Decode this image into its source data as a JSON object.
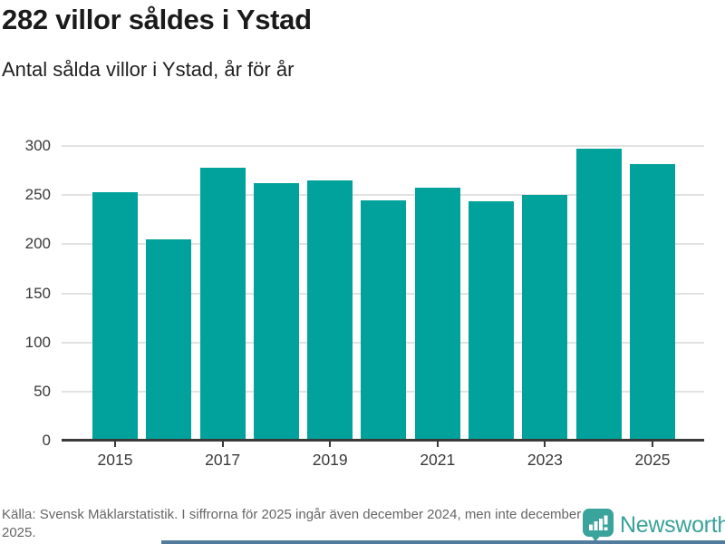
{
  "header": {
    "title": "282 villor såldes i Ystad",
    "subtitle": "Antal sålda villor i Ystad, år för år"
  },
  "chart_data": {
    "type": "bar",
    "categories": [
      "2015",
      "2016",
      "2017",
      "2018",
      "2019",
      "2020",
      "2021",
      "2022",
      "2023",
      "2024",
      "2025"
    ],
    "values": [
      253,
      205,
      278,
      262,
      265,
      245,
      258,
      244,
      250,
      297,
      282
    ],
    "x_tick_labels": [
      "2015",
      "",
      "2017",
      "",
      "2019",
      "",
      "2021",
      "",
      "2023",
      "",
      "2025"
    ],
    "y_ticks": [
      0,
      50,
      100,
      150,
      200,
      250,
      300
    ],
    "ylim": [
      0,
      300
    ],
    "title": "282 villor såldes i Ystad",
    "xlabel": "",
    "ylabel": "",
    "grid": "horizontal",
    "legend": "none",
    "bar_color": "#00a29b"
  },
  "footer": {
    "source": "Källa: Svensk Mäklarstatistik. I siffrorna för 2025 ingår även december 2024, men inte december 2025.",
    "brand": "Newsworthy"
  },
  "colors": {
    "bar": "#00a29b",
    "axis": "#3a3a3a",
    "gridline": "#e2e2e2",
    "title_text": "#1a1a1a",
    "source_text": "#666666",
    "brand_teal": "#39a29a",
    "bottom_strip_blue": "#527c9e"
  }
}
